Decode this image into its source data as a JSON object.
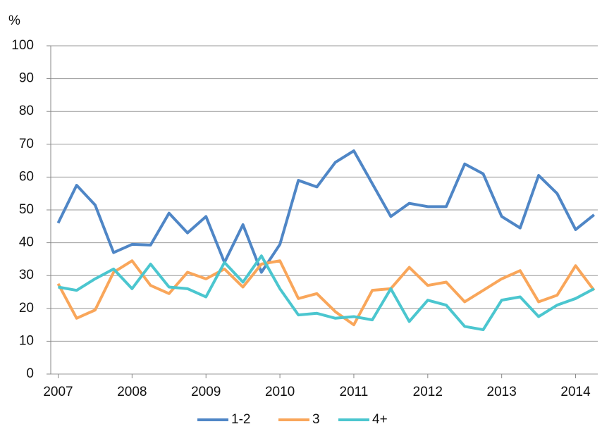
{
  "chart_data": {
    "type": "line",
    "y_label": "%",
    "x": [
      2007,
      2007.25,
      2007.5,
      2007.75,
      2008,
      2008.25,
      2008.5,
      2008.75,
      2009,
      2009.25,
      2009.5,
      2009.75,
      2010,
      2010.25,
      2010.5,
      2010.75,
      2011,
      2011.25,
      2011.5,
      2011.75,
      2012,
      2012.25,
      2012.5,
      2012.75,
      2013,
      2013.25,
      2013.5,
      2013.75,
      2014,
      2014.25
    ],
    "series": [
      {
        "name": "1-2",
        "color": "#4f86c6",
        "values": [
          46,
          57.5,
          51.5,
          37,
          39.5,
          39.3,
          49,
          43,
          48,
          34,
          45.5,
          31,
          39.5,
          59,
          57,
          64.5,
          68,
          58,
          48,
          52,
          51,
          51,
          64,
          61,
          48,
          44.5,
          60.5,
          55,
          44,
          48.5
        ]
      },
      {
        "name": "3",
        "color": "#f9a65a",
        "values": [
          27.5,
          17,
          19.5,
          31,
          34.5,
          27,
          24.5,
          31,
          29,
          32,
          26.5,
          33.5,
          34.5,
          23,
          24.5,
          19,
          15,
          25.5,
          26,
          32.5,
          27,
          28,
          22,
          25.5,
          29,
          31.5,
          22,
          24,
          33,
          25.5
        ]
      },
      {
        "name": "4+",
        "color": "#4bc6cf",
        "values": [
          26.5,
          25.5,
          29,
          32,
          26,
          33.5,
          26.5,
          26,
          23.5,
          34,
          28,
          36,
          26,
          18,
          18.5,
          17,
          17.5,
          16.5,
          26,
          16,
          22.5,
          21,
          14.5,
          13.5,
          22.5,
          23.5,
          17.5,
          21,
          23,
          26
        ]
      }
    ],
    "xlim": [
      2006.9,
      2014.3
    ],
    "xticks": [
      2007,
      2008,
      2009,
      2010,
      2011,
      2012,
      2013,
      2014
    ],
    "ylim": [
      0,
      100
    ],
    "yticks": [
      0,
      10,
      20,
      30,
      40,
      50,
      60,
      70,
      80,
      90,
      100
    ],
    "grid": true,
    "legend": "bottom"
  }
}
